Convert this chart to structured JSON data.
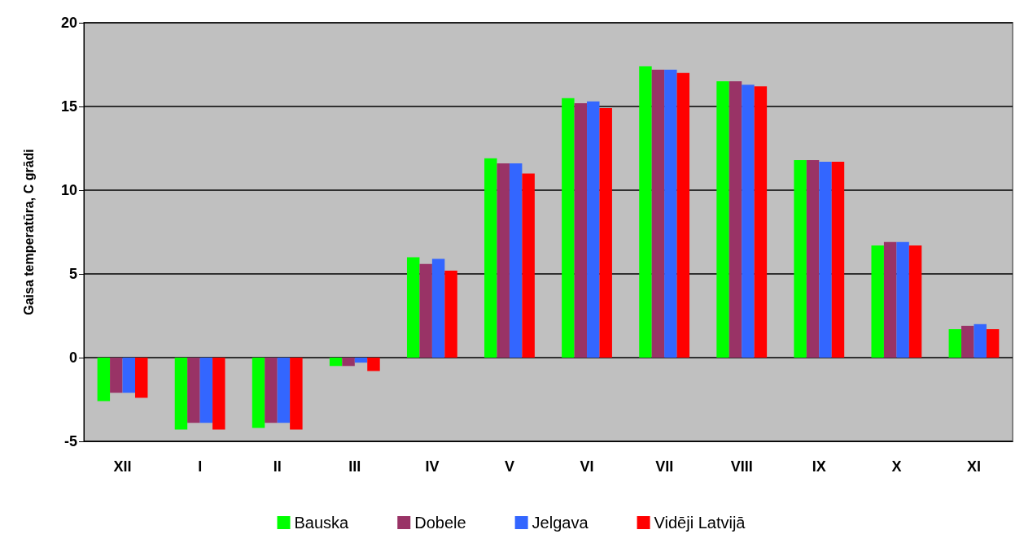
{
  "chart_data": {
    "type": "bar",
    "ylabel": "Gaisa temperatūra, C grādi",
    "categories": [
      "XII",
      "I",
      "II",
      "III",
      "IV",
      "V",
      "VI",
      "VII",
      "VIII",
      "IX",
      "X",
      "XI"
    ],
    "series": [
      {
        "name": "Bauska",
        "color": "#00ff00",
        "values": [
          -2.6,
          -4.3,
          -4.2,
          -0.5,
          6.0,
          11.9,
          15.5,
          17.4,
          16.5,
          11.8,
          6.7,
          1.7
        ]
      },
      {
        "name": "Dobele",
        "color": "#993366",
        "values": [
          -2.1,
          -3.9,
          -3.9,
          -0.5,
          5.6,
          11.6,
          15.2,
          17.2,
          16.5,
          11.8,
          6.9,
          1.9
        ]
      },
      {
        "name": "Jelgava",
        "color": "#3366ff",
        "values": [
          -2.1,
          -3.9,
          -3.9,
          -0.3,
          5.9,
          11.6,
          15.3,
          17.2,
          16.3,
          11.7,
          6.9,
          2.0
        ]
      },
      {
        "name": "Vidēji Latvijā",
        "color": "#ff0000",
        "values": [
          -2.4,
          -4.3,
          -4.3,
          -0.8,
          5.2,
          11.0,
          14.9,
          17.0,
          16.2,
          11.7,
          6.7,
          1.7
        ]
      }
    ],
    "ylim": [
      -5,
      20
    ],
    "yticks": [
      -5,
      0,
      5,
      10,
      15,
      20
    ],
    "grid": "y",
    "legend": "bottom"
  }
}
